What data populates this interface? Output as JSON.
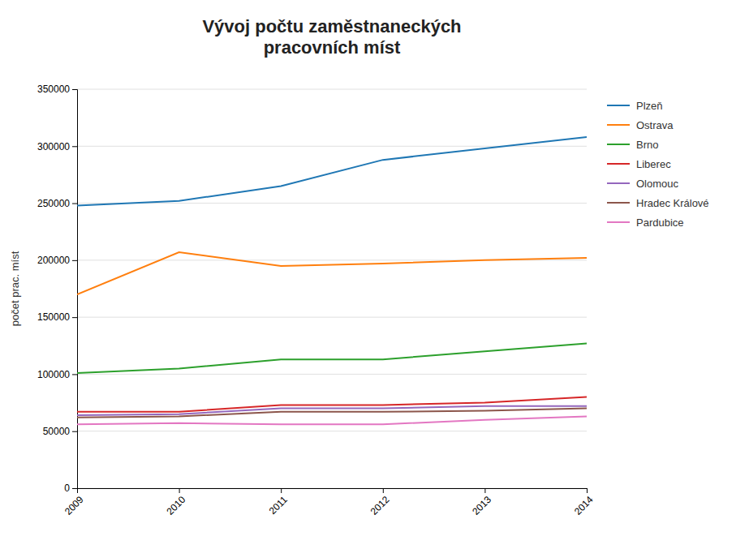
{
  "chart_data": {
    "type": "line",
    "title": "Vývoj počtu zaměstnaneckých\npracovních míst",
    "ylabel": "počet prac. míst",
    "x": [
      2009,
      2010,
      2011,
      2012,
      2013,
      2014
    ],
    "series": [
      {
        "name": "Plzeň",
        "values": [
          248000,
          252000,
          265000,
          288000,
          298000,
          308000
        ]
      },
      {
        "name": "Ostrava",
        "values": [
          170000,
          207000,
          195000,
          197000,
          200000,
          202000
        ]
      },
      {
        "name": "Brno",
        "values": [
          101000,
          105000,
          113000,
          113000,
          120000,
          127000
        ]
      },
      {
        "name": "Liberec",
        "values": [
          67000,
          67000,
          73000,
          73000,
          75000,
          80000
        ]
      },
      {
        "name": "Olomouc",
        "values": [
          64000,
          65000,
          70000,
          70000,
          72000,
          72000
        ]
      },
      {
        "name": "Hradec Králové",
        "values": [
          62000,
          63000,
          67000,
          67000,
          68000,
          70000
        ]
      },
      {
        "name": "Pardubice",
        "values": [
          56000,
          57000,
          56000,
          56000,
          60000,
          63000
        ]
      }
    ],
    "xlim": [
      2009,
      2014
    ],
    "xticks": [
      2009,
      2010,
      2011,
      2012,
      2013,
      2014
    ],
    "ylim": [
      0,
      350000
    ],
    "yticks": [
      0,
      50000,
      100000,
      150000,
      200000,
      250000,
      300000,
      350000
    ],
    "grid": true,
    "legend": "right"
  }
}
